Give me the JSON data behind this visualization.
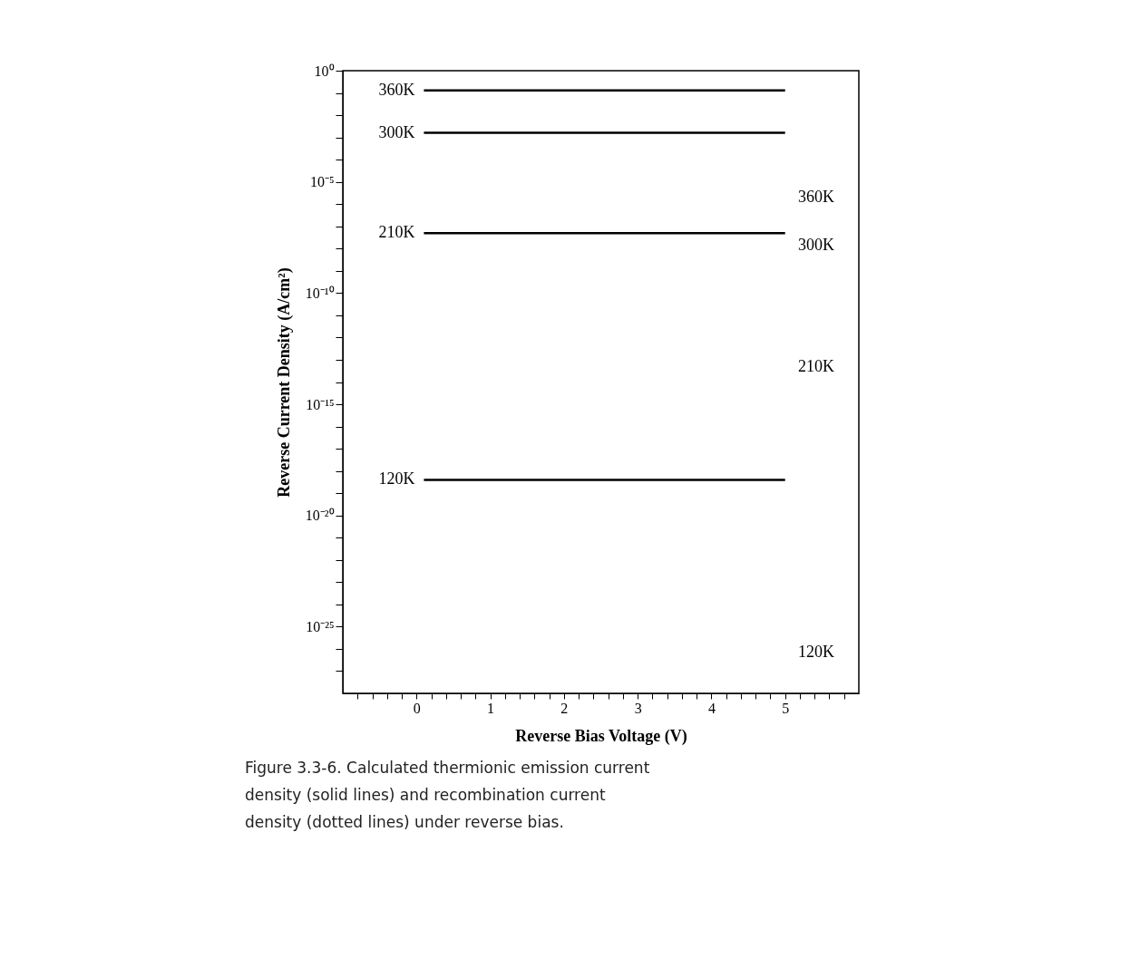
{
  "chart_data": {
    "type": "line",
    "xlabel": "Reverse Bias Voltage (V)",
    "ylabel": "Reverse Current Density (A/cm²)",
    "log": "y",
    "grid": false,
    "legend": "left",
    "marker": "none",
    "line_style": "solid",
    "xlim": [
      -1,
      6
    ],
    "ylim": [
      1e-28,
      1
    ],
    "xticks": [
      {
        "value": -0.8,
        "label": null
      },
      {
        "value": -0.6,
        "label": null
      },
      {
        "value": -0.4,
        "label": null
      },
      {
        "value": -0.2,
        "label": null
      },
      0,
      {
        "value": 0.2,
        "label": null
      },
      {
        "value": 0.4,
        "label": null
      },
      {
        "value": 0.6,
        "label": null
      },
      {
        "value": 0.8,
        "label": null
      },
      1,
      {
        "value": 1.2,
        "label": null
      },
      {
        "value": 1.4,
        "label": null
      },
      {
        "value": 1.6,
        "label": null
      },
      {
        "value": 1.8,
        "label": null
      },
      2,
      {
        "value": 2.2,
        "label": null
      },
      {
        "value": 2.4,
        "label": null
      },
      {
        "value": 2.6,
        "label": null
      },
      {
        "value": 2.8,
        "label": null
      },
      3,
      {
        "value": 3.2,
        "label": null
      },
      {
        "value": 3.4,
        "label": null
      },
      {
        "value": 3.6,
        "label": null
      },
      {
        "value": 3.8,
        "label": null
      },
      4,
      {
        "value": 4.2,
        "label": null
      },
      {
        "value": 4.4,
        "label": null
      },
      {
        "value": 4.6,
        "label": null
      },
      {
        "value": 4.8,
        "label": null
      },
      5,
      {
        "value": 5.2,
        "label": null
      },
      {
        "value": 5.4,
        "label": null
      },
      {
        "value": 5.6,
        "label": null
      },
      {
        "value": 5.8,
        "label": null
      }
    ],
    "yticks": [
      {
        "value": 1,
        "label": "10⁰"
      },
      {
        "value": 0.1,
        "label": null
      },
      {
        "value": 0.01,
        "label": null
      },
      {
        "value": 0.001,
        "label": null
      },
      {
        "value": 0.0001,
        "label": null
      },
      {
        "value": 1e-05,
        "label": "10⁻⁵"
      },
      {
        "value": 1e-06,
        "label": null
      },
      {
        "value": 1e-07,
        "label": null
      },
      {
        "value": 1e-08,
        "label": null
      },
      {
        "value": 1e-09,
        "label": null
      },
      {
        "value": 1e-10,
        "label": "10⁻¹⁰"
      },
      {
        "value": 1e-11,
        "label": null
      },
      {
        "value": 1e-12,
        "label": null
      },
      {
        "value": 1e-13,
        "label": null
      },
      {
        "value": 1e-14,
        "label": null
      },
      {
        "value": 1e-15,
        "label": "10⁻¹⁵"
      },
      {
        "value": 1e-16,
        "label": null
      },
      {
        "value": 1e-17,
        "label": null
      },
      {
        "value": 1e-18,
        "label": null
      },
      {
        "value": 1e-19,
        "label": null
      },
      {
        "value": 1e-20,
        "label": "10⁻²⁰"
      },
      {
        "value": 1e-21,
        "label": null
      },
      {
        "value": 1e-22,
        "label": null
      },
      {
        "value": 1e-23,
        "label": null
      },
      {
        "value": 1e-24,
        "label": null
      },
      {
        "value": 1e-25,
        "label": "10⁻²⁵"
      },
      {
        "value": 1e-26,
        "label": null
      },
      {
        "value": 1e-27,
        "label": null
      }
    ],
    "x": [
      0.1,
      5
    ],
    "series": [
      {
        "name": "360K",
        "color": "#000000",
        "values": [
          0.13,
          0.13
        ]
      },
      {
        "name": "300K",
        "color": "#000000",
        "values": [
          0.0016,
          0.0016
        ]
      },
      {
        "name": "210K",
        "color": "#000000",
        "values": [
          5e-08,
          5e-08
        ]
      },
      {
        "name": "120K",
        "color": "#000000",
        "values": [
          4e-19,
          4e-19
        ]
      }
    ],
    "annotations": [
      "360K",
      "300K",
      "210K",
      "120K",
      "Figure 3.3-6. Calculated thermionic emission current density (solid lines) and recombination current density (dotted lines) under reverse bias."
    ]
  }
}
